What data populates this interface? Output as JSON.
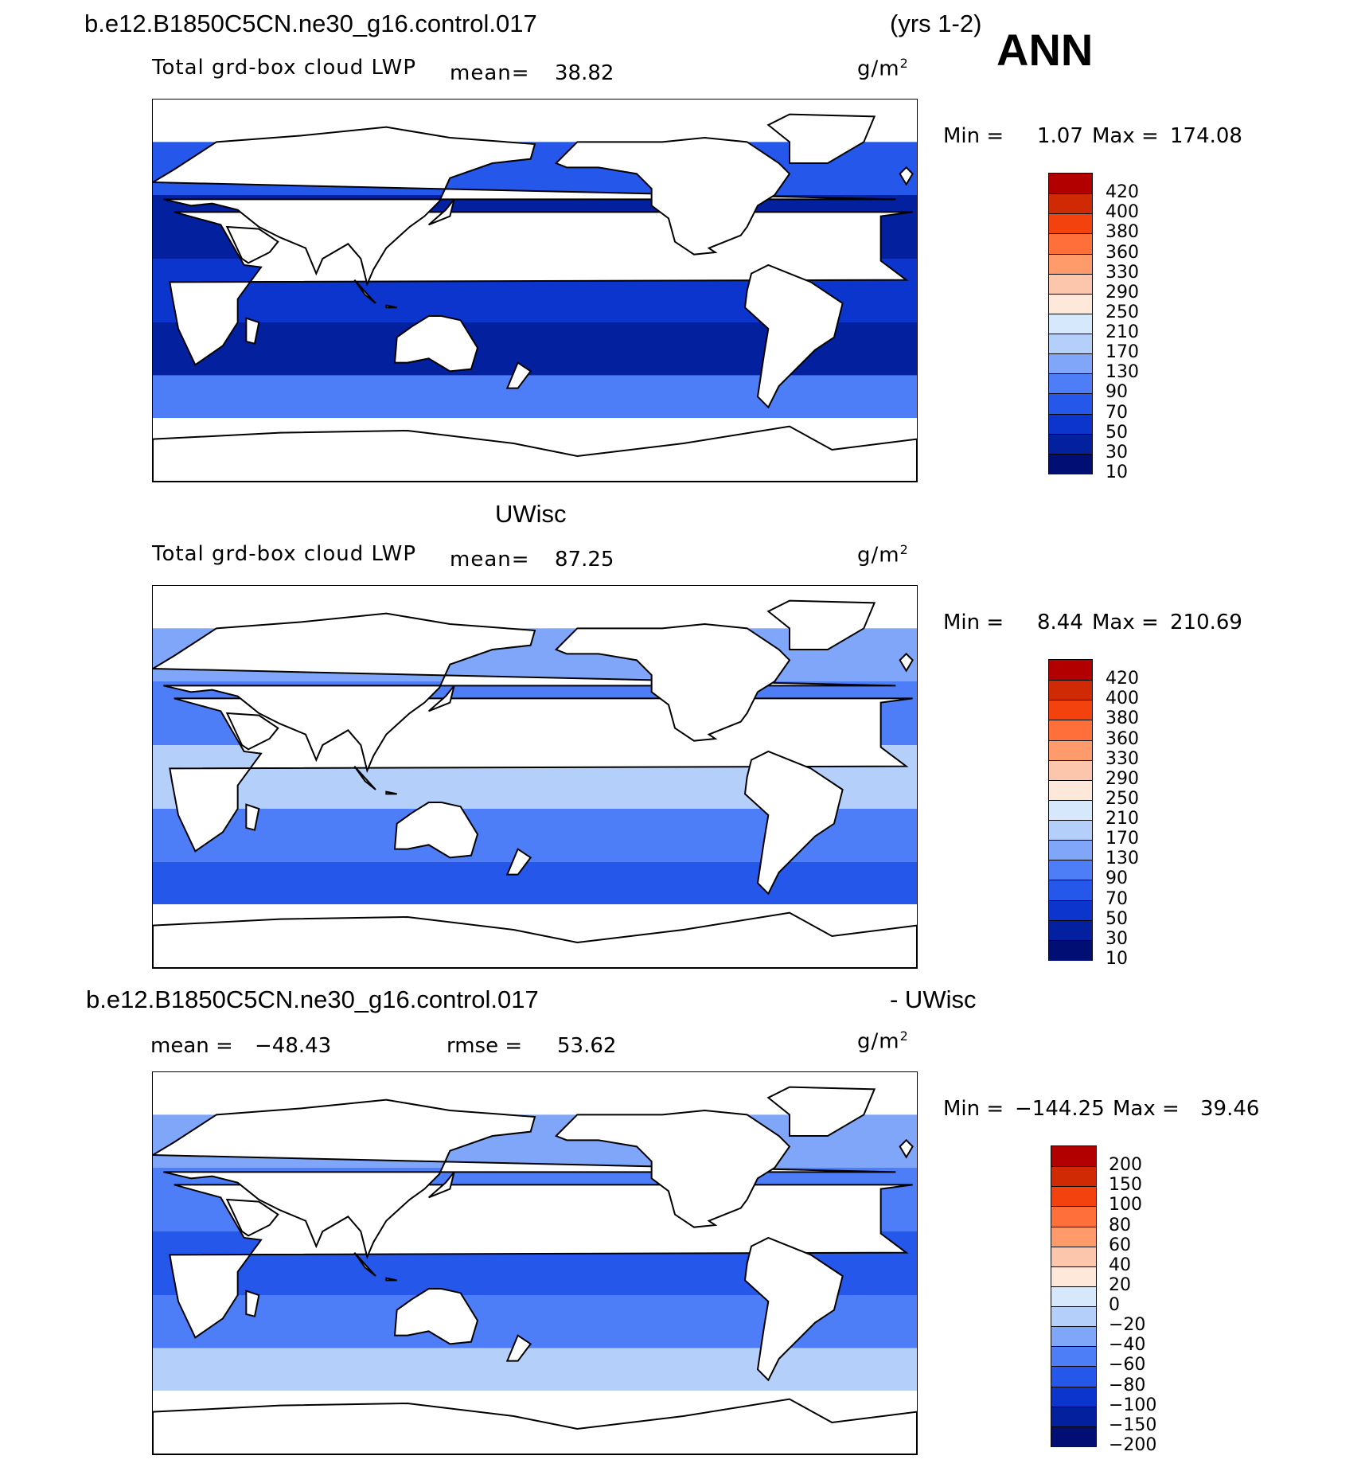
{
  "header": {
    "case_name": "b.e12.B1850C5CN.ne30_g16.control.017",
    "years": "(yrs 1-2)",
    "season": "ANN"
  },
  "panels": [
    {
      "subtitle": "",
      "variable": "Total grd-box cloud LWP",
      "mean_label": "mean=",
      "mean_value": "38.82",
      "units": "g/m",
      "units_sup": "2",
      "min_label": "Min =",
      "min_value": "1.07",
      "max_label": "Max =",
      "max_value": "174.08",
      "palette": "fill",
      "colors": [
        "#b20000",
        "#cf2a04",
        "#f4420f",
        "#ff6f3a",
        "#ff9a6a",
        "#fcc6ad",
        "#fde8da",
        "#d6e8fb",
        "#b4cffa",
        "#7fa6f9",
        "#4d7ef8",
        "#2457ea",
        "#0b35cc",
        "#03209f",
        "#010f75"
      ],
      "levels": [
        "420",
        "400",
        "380",
        "360",
        "330",
        "290",
        "250",
        "210",
        "170",
        "130",
        "90",
        "70",
        "50",
        "30",
        "10"
      ],
      "ocean": {
        "tropics": "#0b35cc",
        "subtropics": "#03209f",
        "midlat": "#2457ea",
        "storm": "#4d7ef8"
      }
    },
    {
      "subtitle": "UWisc",
      "variable": "Total grd-box cloud LWP",
      "mean_label": "mean=",
      "mean_value": "87.25",
      "units": "g/m",
      "units_sup": "2",
      "min_label": "Min =",
      "min_value": "8.44",
      "max_label": "Max =",
      "max_value": "210.69",
      "palette": "fill",
      "colors": [
        "#b20000",
        "#cf2a04",
        "#f4420f",
        "#ff6f3a",
        "#ff9a6a",
        "#fcc6ad",
        "#fde8da",
        "#d6e8fb",
        "#b4cffa",
        "#7fa6f9",
        "#4d7ef8",
        "#2457ea",
        "#0b35cc",
        "#03209f",
        "#010f75"
      ],
      "levels": [
        "420",
        "400",
        "380",
        "360",
        "330",
        "290",
        "250",
        "210",
        "170",
        "130",
        "90",
        "70",
        "50",
        "30",
        "10"
      ],
      "ocean": {
        "tropics": "#b4cffa",
        "subtropics": "#4d7ef8",
        "midlat": "#7fa6f9",
        "storm": "#2457ea"
      }
    },
    {
      "subtitle": "- UWisc",
      "subtitle_left": "b.e12.B1850C5CN.ne30_g16.control.017",
      "mean_label": "mean = ",
      "mean_value": "−48.43",
      "rmse_label": "rmse =",
      "rmse_value": "53.62",
      "units": "g/m",
      "units_sup": "2",
      "min_label": "Min =",
      "min_value": "−144.25",
      "max_label": "Max =",
      "max_value": "39.46",
      "palette": "diff",
      "colors": [
        "#b20000",
        "#cf2a04",
        "#f4420f",
        "#ff6f3a",
        "#ff9a6a",
        "#fcc6ad",
        "#fde8da",
        "#d6e8fb",
        "#b4cffa",
        "#7fa6f9",
        "#4d7ef8",
        "#2457ea",
        "#0b35cc",
        "#03209f",
        "#010f75"
      ],
      "levels": [
        "200",
        "150",
        "100",
        "80",
        "60",
        "40",
        "20",
        "0",
        "−20",
        "−40",
        "−60",
        "−80",
        "−100",
        "−150",
        "−200"
      ],
      "ocean": {
        "tropics": "#2457ea",
        "subtropics": "#4d7ef8",
        "midlat": "#7fa6f9",
        "storm": "#b4cffa"
      }
    }
  ]
}
